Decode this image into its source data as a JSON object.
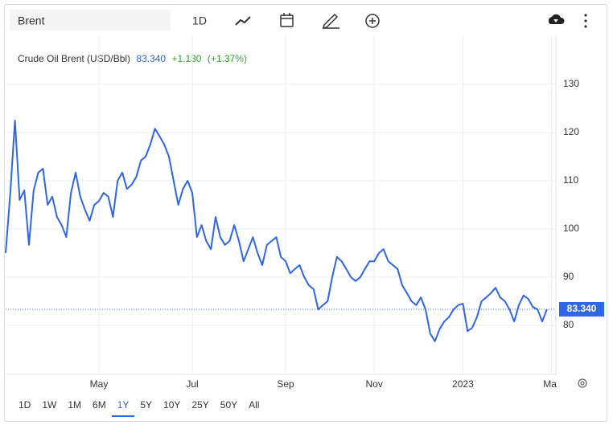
{
  "toolbar": {
    "search": "Brent",
    "interval": "1D"
  },
  "ranges": [
    "1D",
    "1W",
    "1M",
    "6M",
    "1Y",
    "5Y",
    "10Y",
    "25Y",
    "50Y",
    "All"
  ],
  "selected_range": "1Y",
  "chart_data": {
    "type": "line",
    "title": "Crude Oil Brent (USD/Bbl)",
    "change": "+1.130",
    "change_pct": "(+1.37%)",
    "last": {
      "value": 83.34,
      "label": "83.340"
    },
    "color": "#2f66e5",
    "categories": [
      null,
      null,
      null,
      null,
      null,
      null,
      null,
      null,
      null,
      null,
      null,
      null,
      null,
      null,
      null,
      null,
      null,
      null,
      null,
      null,
      "May",
      null,
      null,
      null,
      null,
      null,
      null,
      null,
      null,
      null,
      null,
      null,
      null,
      null,
      null,
      null,
      null,
      null,
      null,
      null,
      "Jul",
      null,
      null,
      null,
      null,
      null,
      null,
      null,
      null,
      null,
      null,
      null,
      null,
      null,
      null,
      null,
      null,
      null,
      null,
      null,
      "Sep",
      null,
      null,
      null,
      null,
      null,
      null,
      null,
      null,
      null,
      null,
      null,
      null,
      null,
      null,
      null,
      null,
      null,
      null,
      "Nov",
      null,
      null,
      null,
      null,
      null,
      null,
      null,
      null,
      null,
      null,
      null,
      null,
      null,
      null,
      null,
      null,
      null,
      null,
      "2023",
      null,
      null,
      null,
      null,
      null,
      null,
      null,
      null,
      null,
      null,
      null,
      null,
      null,
      null,
      null,
      null,
      null,
      null,
      "Mar"
    ],
    "values": [
      95,
      107.5,
      122.5,
      106,
      108,
      96.7,
      108,
      111.7,
      112.5,
      105,
      106.7,
      102.5,
      100.8,
      98.3,
      107.5,
      111.7,
      106.7,
      104,
      101.7,
      105,
      105.8,
      107.5,
      106.7,
      102.5,
      110,
      111.7,
      108.3,
      109.2,
      110.8,
      114.2,
      115,
      117.5,
      120.8,
      119.2,
      117.5,
      115,
      110,
      105,
      108.3,
      110,
      107.5,
      98.3,
      100.8,
      97.5,
      95.8,
      102.5,
      98.3,
      96.7,
      97.5,
      100.8,
      97.5,
      93.3,
      95.8,
      98.3,
      95,
      92.5,
      96.7,
      97.5,
      98.3,
      94.2,
      93.3,
      90.8,
      91.7,
      92.5,
      90,
      88.3,
      87.5,
      83.3,
      84.2,
      85,
      90,
      94.2,
      93.3,
      91.7,
      90,
      89.2,
      90,
      91.7,
      93.3,
      93.3,
      95,
      95.8,
      93.3,
      92.5,
      91.7,
      88.3,
      86.7,
      85,
      84.2,
      85.8,
      83.3,
      78.3,
      76.7,
      79.2,
      80.8,
      81.7,
      83.3,
      84.2,
      84.5,
      78.8,
      79.5,
      81.7,
      85,
      85.8,
      86.7,
      87.8,
      85.8,
      85,
      83.3,
      80.8,
      84.2,
      86.2,
      85.5,
      83.8,
      83.3,
      80.8,
      83.34,
      null
    ],
    "ylim": [
      70,
      140
    ],
    "yticks": [
      80,
      90,
      100,
      110,
      120,
      130
    ],
    "grid": true
  }
}
